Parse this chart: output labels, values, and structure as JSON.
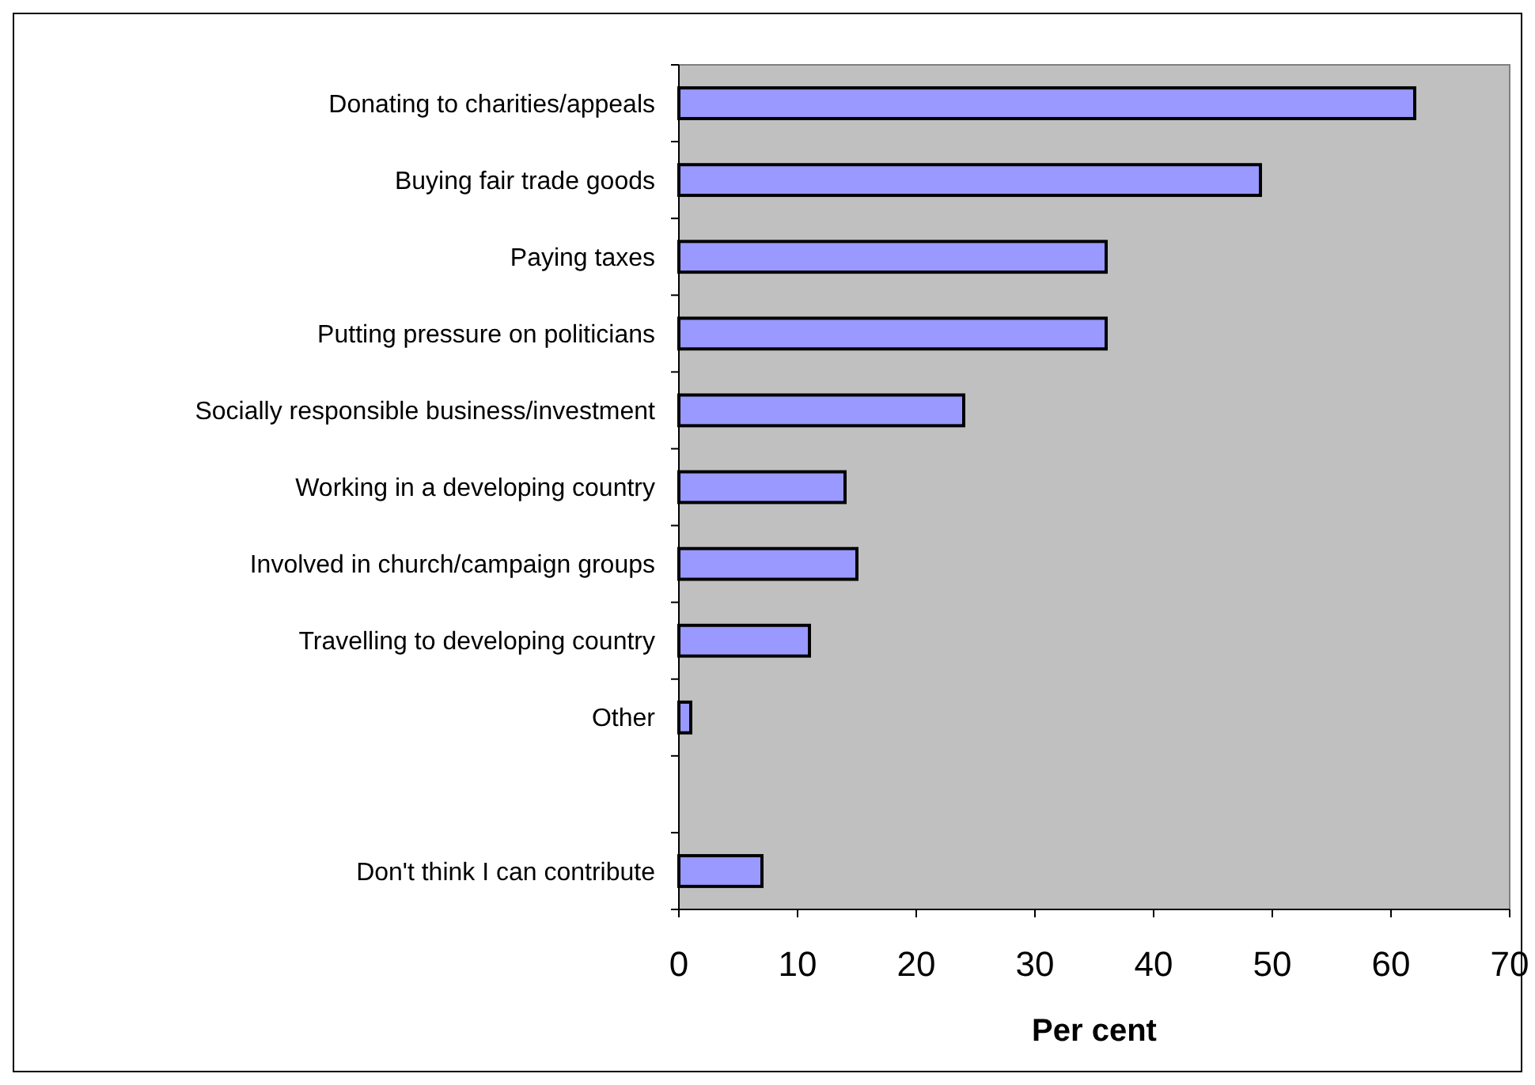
{
  "chart_data": {
    "type": "bar",
    "orientation": "horizontal",
    "xlabel": "Per cent",
    "categories": [
      "Donating to charities/appeals",
      "Buying fair trade goods",
      "Paying taxes",
      "Putting pressure on politicians",
      "Socially responsible business/investment",
      "Working in a developing country",
      "Involved in church/campaign groups",
      "Travelling to developing country",
      "Other",
      null,
      "Don't think I can contribute"
    ],
    "values": [
      62,
      49,
      36,
      36,
      24,
      14,
      15,
      11,
      1,
      null,
      7
    ],
    "color": "#9999ff",
    "xlim": [
      0,
      70
    ],
    "xticks": [
      0,
      10,
      20,
      30,
      40,
      50,
      60,
      70
    ],
    "grid": false
  }
}
